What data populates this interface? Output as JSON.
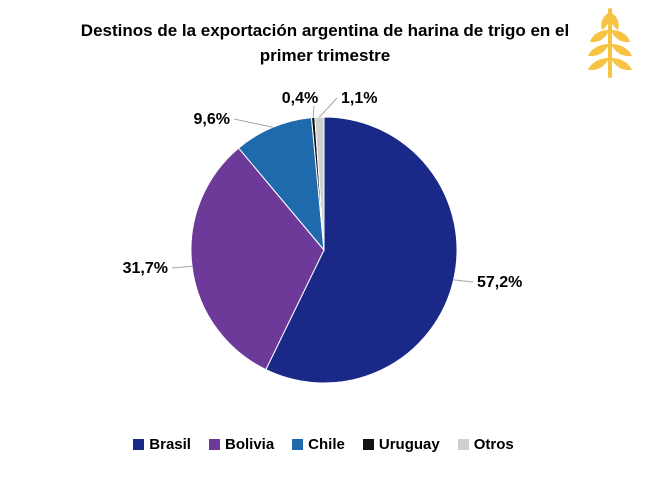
{
  "chart_data": {
    "type": "pie",
    "title": "Destinos de la exportación argentina de harina de trigo en el primer trimestre",
    "unit": "%",
    "labels": [
      "Brasil",
      "Bolivia",
      "Chile",
      "Uruguay",
      "Otros"
    ],
    "values": [
      57.2,
      31.7,
      9.6,
      0.4,
      1.1
    ],
    "value_labels": [
      "57,2%",
      "31,7%",
      "9,6%",
      "0,4%",
      "1,1%"
    ],
    "colors": [
      "#1a2987",
      "#6e3a9a",
      "#1f6aad",
      "#111111",
      "#cfcfcf"
    ],
    "start_angle_deg": 0,
    "direction": "clockwise",
    "legend_position": "bottom"
  },
  "logo": {
    "icon": "wheat-icon",
    "color": "#f6c343"
  }
}
